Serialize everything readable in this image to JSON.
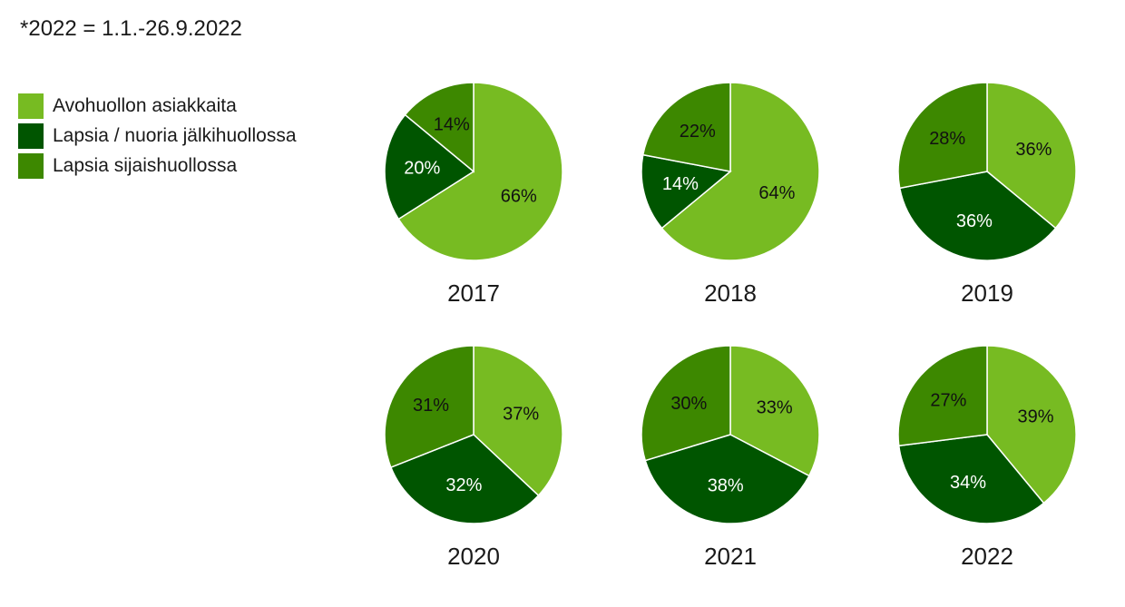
{
  "note": "*2022 = 1.1.-26.9.2022",
  "chart_data": {
    "type": "pie",
    "legend_position": "left",
    "series": [
      {
        "name": "Avohuollon asiakkaita",
        "color": "#77bb22"
      },
      {
        "name": "Lapsia / nuoria jälkihuollossa",
        "color": "#005500"
      },
      {
        "name": "Lapsia sijaishuollossa",
        "color": "#3d8800"
      }
    ],
    "pies": [
      {
        "year": "2017",
        "values": [
          66,
          20,
          14
        ],
        "labels": [
          "66%",
          "20%",
          "14%"
        ]
      },
      {
        "year": "2018",
        "values": [
          64,
          14,
          22
        ],
        "labels": [
          "64%",
          "14%",
          "22%"
        ]
      },
      {
        "year": "2019",
        "values": [
          36,
          36,
          28
        ],
        "labels": [
          "36%",
          "36%",
          "28%"
        ]
      },
      {
        "year": "2020",
        "values": [
          37,
          32,
          31
        ],
        "labels": [
          "37%",
          "32%",
          "31%"
        ]
      },
      {
        "year": "2021",
        "values": [
          33,
          38,
          30
        ],
        "labels": [
          "33%",
          "38%",
          "30%"
        ]
      },
      {
        "year": "2022",
        "values": [
          39,
          34,
          27
        ],
        "labels": [
          "39%",
          "34%",
          "27%"
        ]
      }
    ]
  }
}
